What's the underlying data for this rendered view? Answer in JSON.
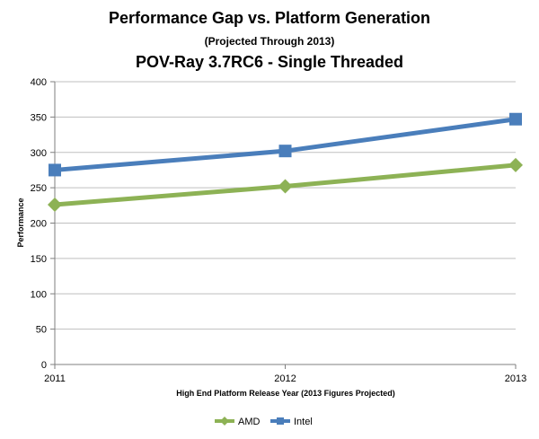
{
  "chart_data": {
    "type": "line",
    "title": "Performance Gap vs. Platform Generation",
    "subtitle": "(Projected Through 2013)",
    "title2": "POV-Ray 3.7RC6 - Single Threaded",
    "xlabel": "High End Platform Release Year (2013 Figures Projected)",
    "ylabel": "Performance",
    "categories": [
      "2011",
      "2012",
      "2013"
    ],
    "ylim": [
      0,
      400
    ],
    "yticks": [
      0,
      50,
      100,
      150,
      200,
      250,
      300,
      350,
      400
    ],
    "grid": "horizontal",
    "legend": "bottom",
    "series": [
      {
        "name": "AMD",
        "values": [
          226,
          252,
          282
        ],
        "color": "#8db255",
        "marker": "diamond"
      },
      {
        "name": "Intel",
        "values": [
          275,
          302,
          347
        ],
        "color": "#4a7ebb",
        "marker": "square"
      }
    ]
  }
}
